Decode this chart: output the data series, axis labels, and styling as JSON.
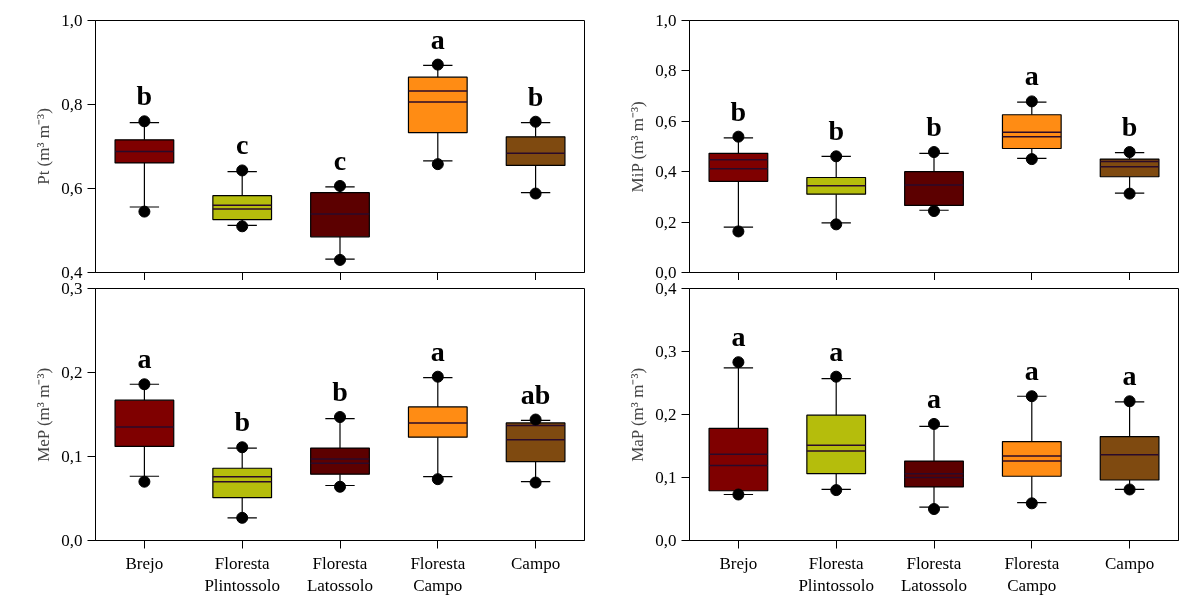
{
  "chart_data": [
    {
      "type": "box",
      "ylabel": "Pt (m³ m⁻³)",
      "categories": [
        null,
        null,
        null,
        null,
        null
      ],
      "colors": [
        "#7f0000",
        "#b5bd0c",
        "#5c0000",
        "#ff8c14",
        "#7f4a10"
      ],
      "ylim": [
        0.4,
        1.0
      ],
      "yticks": [
        {
          "value": 0.4,
          "label": "0,4"
        },
        {
          "value": 0.6,
          "label": "0,6"
        },
        {
          "value": 0.8,
          "label": "0,8"
        },
        {
          "value": 1.0,
          "label": "1,0"
        }
      ],
      "tick_labels": "y",
      "boxes": [
        {
          "low": 0.556,
          "q1": 0.661,
          "median": 0.688,
          "q3": 0.716,
          "high": 0.757,
          "outliers": [
            0.76,
            0.545
          ]
        },
        {
          "low": 0.512,
          "q1": 0.526,
          "median": 0.551,
          "q3": 0.583,
          "high": 0.64,
          "mean": 0.56,
          "outliers": [
            0.643,
            0.51
          ]
        },
        {
          "low": 0.432,
          "q1": 0.485,
          "median": 0.539,
          "q3": 0.59,
          "high": 0.604,
          "outliers": [
            0.606,
            0.43
          ]
        },
        {
          "low": 0.666,
          "q1": 0.733,
          "median": 0.806,
          "q3": 0.865,
          "high": 0.893,
          "mean": 0.832,
          "outliers": [
            0.895,
            0.658
          ]
        },
        {
          "low": 0.59,
          "q1": 0.655,
          "median": 0.684,
          "q3": 0.723,
          "high": 0.757,
          "outliers": [
            0.759,
            0.588
          ]
        }
      ],
      "annotations": [
        "b",
        "c",
        "c",
        "a",
        "b"
      ]
    },
    {
      "type": "box",
      "ylabel": "MiP (m³ m⁻³)",
      "categories": [
        null,
        null,
        null,
        null,
        null
      ],
      "colors": [
        "#7f0000",
        "#b5bd0c",
        "#5c0000",
        "#ff8c14",
        "#7f4a10"
      ],
      "ylim": [
        0.0,
        1.0
      ],
      "yticks": [
        {
          "value": 0.0,
          "label": "0,0"
        },
        {
          "value": 0.2,
          "label": "0,2"
        },
        {
          "value": 0.4,
          "label": "0,4"
        },
        {
          "value": 0.6,
          "label": "0,6"
        },
        {
          "value": 0.8,
          "label": "0,8"
        },
        {
          "value": 1.0,
          "label": "1,0"
        }
      ],
      "tick_labels": "y",
      "boxes": [
        {
          "low": 0.18,
          "q1": 0.362,
          "median": 0.412,
          "q3": 0.473,
          "high": 0.534,
          "mean": 0.447,
          "outliers": [
            0.539,
            0.163
          ]
        },
        {
          "low": 0.197,
          "q1": 0.311,
          "median": 0.344,
          "q3": 0.377,
          "high": 0.461,
          "outliers": [
            0.461,
            0.191
          ]
        },
        {
          "low": 0.247,
          "q1": 0.266,
          "median": 0.347,
          "q3": 0.4,
          "high": 0.473,
          "outliers": [
            0.478,
            0.244
          ]
        },
        {
          "low": 0.453,
          "q1": 0.492,
          "median": 0.539,
          "q3": 0.626,
          "high": 0.676,
          "mean": 0.557,
          "outliers": [
            0.679,
            0.45
          ]
        },
        {
          "low": 0.315,
          "q1": 0.38,
          "median": 0.42,
          "q3": 0.45,
          "high": 0.476,
          "mean": 0.44,
          "outliers": [
            0.478,
            0.313
          ]
        }
      ],
      "annotations": [
        "b",
        "b",
        "b",
        "a",
        "b"
      ]
    },
    {
      "type": "box",
      "ylabel": "MeP (m³ m⁻³)",
      "categories": [
        "Brejo",
        "Floresta\nPlintossolo",
        "Floresta\nLatossolo",
        "Floresta\nCampo",
        "Campo"
      ],
      "colors": [
        "#7f0000",
        "#b5bd0c",
        "#5c0000",
        "#ff8c14",
        "#7f4a10"
      ],
      "ylim": [
        0.0,
        0.3
      ],
      "yticks": [
        {
          "value": 0.0,
          "label": "0,0"
        },
        {
          "value": 0.1,
          "label": "0,1"
        },
        {
          "value": 0.2,
          "label": "0,2"
        },
        {
          "value": 0.3,
          "label": "0,3"
        }
      ],
      "boxes": [
        {
          "low": 0.0765,
          "q1": 0.112,
          "median": 0.135,
          "q3": 0.167,
          "high": 0.186,
          "outliers": [
            0.186,
            0.07
          ]
        },
        {
          "low": 0.027,
          "q1": 0.051,
          "median": 0.07,
          "q3": 0.086,
          "high": 0.11,
          "mean": 0.076,
          "outliers": [
            0.111,
            0.027
          ]
        },
        {
          "low": 0.0655,
          "q1": 0.079,
          "median": 0.092,
          "q3": 0.11,
          "high": 0.145,
          "mean": 0.097,
          "outliers": [
            0.147,
            0.064
          ]
        },
        {
          "low": 0.076,
          "q1": 0.123,
          "median": 0.14,
          "q3": 0.159,
          "high": 0.194,
          "outliers": [
            0.195,
            0.073
          ]
        },
        {
          "low": 0.07,
          "q1": 0.094,
          "median": 0.12,
          "q3": 0.14,
          "high": 0.143,
          "mean": 0.137,
          "outliers": [
            0.144,
            0.069
          ]
        }
      ],
      "annotations": [
        "a",
        "b",
        "b",
        "a",
        "ab"
      ]
    },
    {
      "type": "box",
      "ylabel": "MaP (m³ m⁻³)",
      "categories": [
        "Brejo",
        "Floresta\nPlintossolo",
        "Floresta\nLatossolo",
        "Floresta\nCampo",
        "Campo"
      ],
      "colors": [
        "#7f0000",
        "#b5bd0c",
        "#5c0000",
        "#ff8c14",
        "#7f4a10"
      ],
      "ylim": [
        0.0,
        0.4
      ],
      "yticks": [
        {
          "value": 0.0,
          "label": "0,0"
        },
        {
          "value": 0.1,
          "label": "0,1"
        },
        {
          "value": 0.2,
          "label": "0,2"
        },
        {
          "value": 0.3,
          "label": "0,3"
        },
        {
          "value": 0.4,
          "label": "0,4"
        }
      ],
      "boxes": [
        {
          "low": 0.073,
          "q1": 0.079,
          "median": 0.119,
          "q3": 0.178,
          "high": 0.274,
          "mean": 0.137,
          "outliers": [
            0.283,
            0.073
          ]
        },
        {
          "low": 0.081,
          "q1": 0.106,
          "median": 0.142,
          "q3": 0.199,
          "high": 0.257,
          "mean": 0.151,
          "outliers": [
            0.26,
            0.08
          ]
        },
        {
          "low": 0.053,
          "q1": 0.085,
          "median": 0.1,
          "q3": 0.126,
          "high": 0.181,
          "mean": 0.106,
          "outliers": [
            0.185,
            0.05
          ]
        },
        {
          "low": 0.06,
          "q1": 0.102,
          "median": 0.126,
          "q3": 0.157,
          "high": 0.229,
          "mean": 0.134,
          "outliers": [
            0.229,
            0.059
          ]
        },
        {
          "low": 0.081,
          "q1": 0.096,
          "median": 0.136,
          "q3": 0.165,
          "high": 0.22,
          "outliers": [
            0.221,
            0.081
          ]
        }
      ],
      "annotations": [
        "a",
        "a",
        "a",
        "a",
        "a"
      ]
    }
  ]
}
